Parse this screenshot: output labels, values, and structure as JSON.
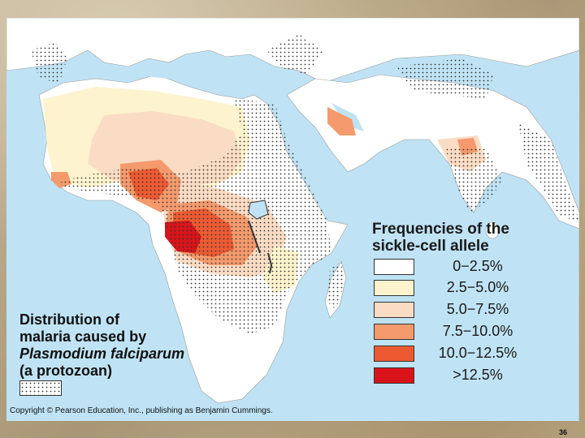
{
  "legend": {
    "title_line1": "Frequencies of the",
    "title_line2": "sickle-cell allele",
    "items": [
      {
        "label": "0−2.5%",
        "color": "#ffffff"
      },
      {
        "label": "2.5−5.0%",
        "color": "#fdf3cc"
      },
      {
        "label": "5.0−7.5%",
        "color": "#fadcc4"
      },
      {
        "label": "7.5−10.0%",
        "color": "#f49a6c"
      },
      {
        "label": "10.0−12.5%",
        "color": "#ec5a32"
      },
      {
        "label": ">12.5%",
        "color": "#d8141a"
      }
    ]
  },
  "malaria": {
    "line1": "Distribution of",
    "line2": "malaria caused by",
    "line3": "Plasmodium falciparum",
    "line4": "(a protozoan)"
  },
  "copyright": "Copyright © Pearson Education, Inc., publishing as Benjamin Cummings.",
  "slide_number": "36",
  "colors": {
    "ocean": "#bfe3f4",
    "land": "#ffffff",
    "malaria_dots": "#333333"
  }
}
